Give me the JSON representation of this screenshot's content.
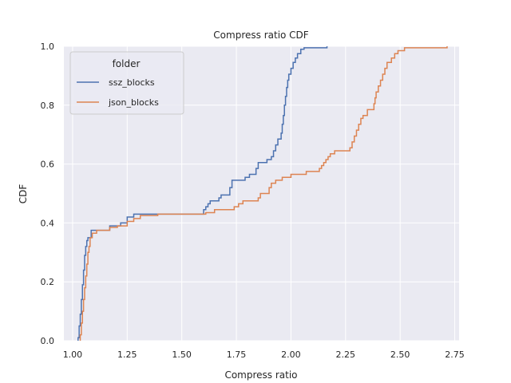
{
  "chart_data": {
    "type": "line",
    "title": "Compress ratio CDF",
    "xlabel": "Compress ratio",
    "ylabel": "CDF",
    "xlim": [
      0.96,
      2.77
    ],
    "ylim": [
      0,
      1
    ],
    "xticks": [
      "1.00",
      "1.25",
      "1.50",
      "1.75",
      "2.00",
      "2.25",
      "2.50",
      "2.75"
    ],
    "yticks": [
      "0.0",
      "0.2",
      "0.4",
      "0.6",
      "0.8",
      "1.0"
    ],
    "grid": true,
    "legend": {
      "title": "folder",
      "placement": "top-left"
    },
    "colors": {
      "background": "#eaeaf2",
      "grid": "#ffffff"
    },
    "series": [
      {
        "name": "ssz_blocks",
        "color": "#4c72b0",
        "points": [
          [
            1.025,
            0.0
          ],
          [
            1.025,
            0.01
          ],
          [
            1.03,
            0.01
          ],
          [
            1.03,
            0.05
          ],
          [
            1.035,
            0.05
          ],
          [
            1.035,
            0.09
          ],
          [
            1.04,
            0.09
          ],
          [
            1.04,
            0.14
          ],
          [
            1.045,
            0.14
          ],
          [
            1.045,
            0.19
          ],
          [
            1.05,
            0.19
          ],
          [
            1.05,
            0.24
          ],
          [
            1.055,
            0.24
          ],
          [
            1.055,
            0.29
          ],
          [
            1.06,
            0.29
          ],
          [
            1.06,
            0.32
          ],
          [
            1.065,
            0.32
          ],
          [
            1.065,
            0.34
          ],
          [
            1.07,
            0.34
          ],
          [
            1.07,
            0.35
          ],
          [
            1.085,
            0.35
          ],
          [
            1.085,
            0.375
          ],
          [
            1.17,
            0.375
          ],
          [
            1.17,
            0.39
          ],
          [
            1.22,
            0.39
          ],
          [
            1.22,
            0.4
          ],
          [
            1.25,
            0.4
          ],
          [
            1.25,
            0.42
          ],
          [
            1.28,
            0.42
          ],
          [
            1.28,
            0.43
          ],
          [
            1.6,
            0.43
          ],
          [
            1.6,
            0.445
          ],
          [
            1.61,
            0.445
          ],
          [
            1.61,
            0.455
          ],
          [
            1.62,
            0.455
          ],
          [
            1.62,
            0.465
          ],
          [
            1.63,
            0.465
          ],
          [
            1.63,
            0.475
          ],
          [
            1.67,
            0.475
          ],
          [
            1.67,
            0.485
          ],
          [
            1.68,
            0.485
          ],
          [
            1.68,
            0.495
          ],
          [
            1.72,
            0.495
          ],
          [
            1.72,
            0.52
          ],
          [
            1.73,
            0.52
          ],
          [
            1.73,
            0.545
          ],
          [
            1.79,
            0.545
          ],
          [
            1.79,
            0.555
          ],
          [
            1.81,
            0.555
          ],
          [
            1.81,
            0.565
          ],
          [
            1.84,
            0.565
          ],
          [
            1.84,
            0.585
          ],
          [
            1.85,
            0.585
          ],
          [
            1.85,
            0.605
          ],
          [
            1.89,
            0.605
          ],
          [
            1.89,
            0.615
          ],
          [
            1.91,
            0.615
          ],
          [
            1.91,
            0.625
          ],
          [
            1.92,
            0.625
          ],
          [
            1.92,
            0.645
          ],
          [
            1.93,
            0.645
          ],
          [
            1.93,
            0.665
          ],
          [
            1.94,
            0.665
          ],
          [
            1.94,
            0.685
          ],
          [
            1.955,
            0.685
          ],
          [
            1.955,
            0.705
          ],
          [
            1.96,
            0.705
          ],
          [
            1.96,
            0.735
          ],
          [
            1.965,
            0.735
          ],
          [
            1.965,
            0.765
          ],
          [
            1.97,
            0.765
          ],
          [
            1.97,
            0.8
          ],
          [
            1.975,
            0.8
          ],
          [
            1.975,
            0.83
          ],
          [
            1.98,
            0.83
          ],
          [
            1.98,
            0.86
          ],
          [
            1.985,
            0.86
          ],
          [
            1.985,
            0.885
          ],
          [
            1.99,
            0.885
          ],
          [
            1.99,
            0.905
          ],
          [
            2.0,
            0.905
          ],
          [
            2.0,
            0.925
          ],
          [
            2.01,
            0.925
          ],
          [
            2.01,
            0.945
          ],
          [
            2.02,
            0.945
          ],
          [
            2.02,
            0.96
          ],
          [
            2.03,
            0.96
          ],
          [
            2.03,
            0.975
          ],
          [
            2.045,
            0.975
          ],
          [
            2.045,
            0.99
          ],
          [
            2.06,
            0.99
          ],
          [
            2.06,
            0.995
          ],
          [
            2.165,
            0.995
          ],
          [
            2.165,
            1.0
          ]
        ]
      },
      {
        "name": "json_blocks",
        "color": "#dd8452",
        "points": [
          [
            1.035,
            0.0
          ],
          [
            1.035,
            0.02
          ],
          [
            1.04,
            0.02
          ],
          [
            1.04,
            0.06
          ],
          [
            1.045,
            0.06
          ],
          [
            1.045,
            0.1
          ],
          [
            1.05,
            0.1
          ],
          [
            1.05,
            0.14
          ],
          [
            1.055,
            0.14
          ],
          [
            1.055,
            0.18
          ],
          [
            1.06,
            0.18
          ],
          [
            1.06,
            0.22
          ],
          [
            1.065,
            0.22
          ],
          [
            1.065,
            0.26
          ],
          [
            1.07,
            0.26
          ],
          [
            1.07,
            0.3
          ],
          [
            1.075,
            0.3
          ],
          [
            1.075,
            0.32
          ],
          [
            1.08,
            0.32
          ],
          [
            1.08,
            0.35
          ],
          [
            1.09,
            0.35
          ],
          [
            1.09,
            0.365
          ],
          [
            1.11,
            0.365
          ],
          [
            1.11,
            0.375
          ],
          [
            1.17,
            0.375
          ],
          [
            1.17,
            0.385
          ],
          [
            1.205,
            0.385
          ],
          [
            1.205,
            0.39
          ],
          [
            1.25,
            0.39
          ],
          [
            1.25,
            0.405
          ],
          [
            1.28,
            0.405
          ],
          [
            1.28,
            0.415
          ],
          [
            1.31,
            0.415
          ],
          [
            1.31,
            0.425
          ],
          [
            1.39,
            0.425
          ],
          [
            1.39,
            0.43
          ],
          [
            1.61,
            0.43
          ],
          [
            1.61,
            0.435
          ],
          [
            1.65,
            0.435
          ],
          [
            1.65,
            0.445
          ],
          [
            1.74,
            0.445
          ],
          [
            1.74,
            0.455
          ],
          [
            1.76,
            0.455
          ],
          [
            1.76,
            0.465
          ],
          [
            1.78,
            0.465
          ],
          [
            1.78,
            0.475
          ],
          [
            1.85,
            0.475
          ],
          [
            1.85,
            0.485
          ],
          [
            1.86,
            0.485
          ],
          [
            1.86,
            0.5
          ],
          [
            1.9,
            0.5
          ],
          [
            1.9,
            0.52
          ],
          [
            1.91,
            0.52
          ],
          [
            1.91,
            0.535
          ],
          [
            1.93,
            0.535
          ],
          [
            1.93,
            0.545
          ],
          [
            1.96,
            0.545
          ],
          [
            1.96,
            0.555
          ],
          [
            2.0,
            0.555
          ],
          [
            2.0,
            0.565
          ],
          [
            2.07,
            0.565
          ],
          [
            2.07,
            0.575
          ],
          [
            2.13,
            0.575
          ],
          [
            2.13,
            0.585
          ],
          [
            2.14,
            0.585
          ],
          [
            2.14,
            0.595
          ],
          [
            2.15,
            0.595
          ],
          [
            2.15,
            0.605
          ],
          [
            2.16,
            0.605
          ],
          [
            2.16,
            0.615
          ],
          [
            2.17,
            0.615
          ],
          [
            2.17,
            0.625
          ],
          [
            2.18,
            0.625
          ],
          [
            2.18,
            0.635
          ],
          [
            2.2,
            0.635
          ],
          [
            2.2,
            0.645
          ],
          [
            2.27,
            0.645
          ],
          [
            2.27,
            0.655
          ],
          [
            2.28,
            0.655
          ],
          [
            2.28,
            0.675
          ],
          [
            2.29,
            0.675
          ],
          [
            2.29,
            0.695
          ],
          [
            2.3,
            0.695
          ],
          [
            2.3,
            0.715
          ],
          [
            2.31,
            0.715
          ],
          [
            2.31,
            0.735
          ],
          [
            2.32,
            0.735
          ],
          [
            2.32,
            0.755
          ],
          [
            2.33,
            0.755
          ],
          [
            2.33,
            0.765
          ],
          [
            2.35,
            0.765
          ],
          [
            2.35,
            0.785
          ],
          [
            2.38,
            0.785
          ],
          [
            2.38,
            0.805
          ],
          [
            2.385,
            0.805
          ],
          [
            2.385,
            0.825
          ],
          [
            2.39,
            0.825
          ],
          [
            2.39,
            0.845
          ],
          [
            2.4,
            0.845
          ],
          [
            2.4,
            0.865
          ],
          [
            2.41,
            0.865
          ],
          [
            2.41,
            0.885
          ],
          [
            2.42,
            0.885
          ],
          [
            2.42,
            0.905
          ],
          [
            2.43,
            0.905
          ],
          [
            2.43,
            0.925
          ],
          [
            2.44,
            0.925
          ],
          [
            2.44,
            0.945
          ],
          [
            2.46,
            0.945
          ],
          [
            2.46,
            0.96
          ],
          [
            2.475,
            0.96
          ],
          [
            2.475,
            0.975
          ],
          [
            2.49,
            0.975
          ],
          [
            2.49,
            0.985
          ],
          [
            2.52,
            0.985
          ],
          [
            2.52,
            0.995
          ],
          [
            2.715,
            0.995
          ],
          [
            2.715,
            1.0
          ]
        ]
      }
    ]
  }
}
